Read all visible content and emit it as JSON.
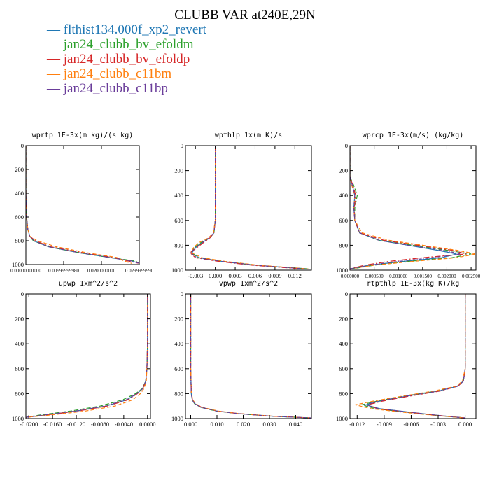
{
  "figure": {
    "title": "CLUBB VAR at240E,29N"
  },
  "legend": [
    {
      "name": "flthist134.000f_xp2_revert",
      "color": "#1f77b4"
    },
    {
      "name": "jan24_clubb_bv_efoldm",
      "color": "#2ca02c"
    },
    {
      "name": "jan24_clubb_bv_efoldp",
      "color": "#d62728"
    },
    {
      "name": "jan24_clubb_c11bm",
      "color": "#ff7f0e"
    },
    {
      "name": "jan24_clubb_c11bp",
      "color": "#6a3d9a"
    }
  ],
  "chart_data": [
    {
      "type": "line",
      "title": "wprtp  1E-3x(m kg)/(s kg)",
      "xlim": [
        0,
        0.03
      ],
      "ylim": [
        1000,
        0
      ],
      "xticks": [
        0,
        0.01,
        0.02,
        0.03
      ],
      "xtick_labels": [
        "0.00000000000",
        "0.00999999980",
        "0.0200000000",
        "0.0299999990"
      ],
      "yticks": [
        0,
        200,
        400,
        600,
        800,
        1000
      ],
      "y": [
        0,
        200,
        400,
        600,
        700,
        760,
        800,
        850,
        900,
        940,
        970,
        990
      ],
      "series": [
        {
          "values": [
            0,
            0,
            0,
            0.0002,
            0.0005,
            0.001,
            0.002,
            0.006,
            0.014,
            0.022,
            0.028,
            0.03
          ]
        },
        {
          "values": [
            0,
            0,
            0,
            0.0002,
            0.0005,
            0.001,
            0.002,
            0.006,
            0.014,
            0.022,
            0.029,
            0.03
          ]
        },
        {
          "values": [
            0,
            0,
            0,
            0.0002,
            0.0005,
            0.001,
            0.0025,
            0.0065,
            0.015,
            0.023,
            0.027,
            0.03
          ]
        },
        {
          "values": [
            0,
            0,
            0,
            0.0002,
            0.0005,
            0.001,
            0.003,
            0.008,
            0.016,
            0.024,
            0.026,
            0.028
          ]
        },
        {
          "values": [
            0,
            0,
            0,
            0.0002,
            0.0005,
            0.001,
            0.0022,
            0.006,
            0.014,
            0.022,
            0.028,
            0.03
          ]
        }
      ]
    },
    {
      "type": "line",
      "title": "wpthlp  1x(m K)/s",
      "xlim": [
        -0.0045,
        0.0145
      ],
      "ylim": [
        1000,
        0
      ],
      "xticks": [
        -0.003,
        0,
        0.003,
        0.006,
        0.009,
        0.012
      ],
      "xtick_labels": [
        "-0.003",
        "0.000",
        "0.003",
        "0.006",
        "0.009",
        "0.012"
      ],
      "yticks": [
        0,
        200,
        400,
        600,
        800,
        1000
      ],
      "y": [
        0,
        200,
        400,
        600,
        700,
        740,
        780,
        820,
        860,
        900,
        930,
        960,
        990
      ],
      "series": [
        {
          "values": [
            0,
            0,
            0,
            0,
            -0.0002,
            -0.0008,
            -0.002,
            -0.003,
            -0.0035,
            -0.0025,
            0.001,
            0.006,
            0.014
          ]
        },
        {
          "values": [
            0,
            0,
            0,
            0,
            -0.0002,
            -0.0008,
            -0.0022,
            -0.0032,
            -0.0036,
            -0.0025,
            0.001,
            0.006,
            0.014
          ]
        },
        {
          "values": [
            0,
            0,
            0,
            0,
            -0.0002,
            -0.0008,
            -0.0018,
            -0.0028,
            -0.0038,
            -0.003,
            0.0005,
            0.0055,
            0.013
          ]
        },
        {
          "values": [
            0,
            0,
            0,
            0,
            -0.0003,
            -0.001,
            -0.0025,
            -0.0033,
            -0.0036,
            -0.002,
            0.0015,
            0.0065,
            0.014
          ]
        },
        {
          "values": [
            0,
            0,
            0,
            0,
            -0.0002,
            -0.0009,
            -0.002,
            -0.003,
            -0.0037,
            -0.0028,
            0.001,
            0.006,
            0.0135
          ]
        }
      ]
    },
    {
      "type": "line",
      "title": "wprcp  1E-3x(m/s) (kg/kg)",
      "xlim": [
        0,
        0.0026
      ],
      "ylim": [
        1000,
        0
      ],
      "xticks": [
        0,
        0.0005,
        0.001,
        0.0015,
        0.002,
        0.0025
      ],
      "xtick_labels": [
        "0.000000",
        "0.000500",
        "0.001000",
        "0.001500",
        "0.002000",
        "0.002500"
      ],
      "yticks": [
        0,
        200,
        400,
        600,
        800,
        1000
      ],
      "y": [
        0,
        250,
        320,
        400,
        500,
        600,
        700,
        760,
        800,
        840,
        870,
        900,
        930,
        960,
        990
      ],
      "series": [
        {
          "values": [
            0,
            0,
            5e-05,
            0.0001,
            8e-05,
            0.0001,
            0.0002,
            0.0006,
            0.0012,
            0.0018,
            0.0022,
            0.0019,
            0.0011,
            0.0004,
            0
          ]
        },
        {
          "values": [
            0,
            0,
            8e-05,
            0.00015,
            0.0001,
            0.0001,
            0.0002,
            0.0006,
            0.0013,
            0.002,
            0.0025,
            0.0021,
            0.0012,
            0.0005,
            5e-05
          ]
        },
        {
          "values": [
            0,
            0,
            6e-05,
            0.00012,
            9e-05,
            0.0001,
            0.0002,
            0.0007,
            0.0014,
            0.0021,
            0.0024,
            0.0015,
            0.0008,
            0.0003,
            0
          ]
        },
        {
          "values": [
            0,
            0,
            4e-05,
            0.0001,
            8e-05,
            0.0001,
            0.00025,
            0.0008,
            0.0015,
            0.0022,
            0.0026,
            0.0022,
            0.0013,
            0.0005,
            0
          ]
        },
        {
          "values": [
            0,
            0,
            5e-05,
            0.0001,
            8e-05,
            0.0001,
            0.0002,
            0.0006,
            0.0012,
            0.0019,
            0.0023,
            0.0017,
            0.001,
            0.0004,
            0
          ]
        }
      ]
    },
    {
      "type": "line",
      "title": "upwp  1xm^2/s^2",
      "xlim": [
        -0.0205,
        0.0005
      ],
      "ylim": [
        1000,
        0
      ],
      "xticks": [
        -0.02,
        -0.016,
        -0.012,
        -0.008,
        -0.004,
        0
      ],
      "xtick_labels": [
        "-0.0200",
        "-0.0160",
        "-0.0120",
        "-0.0080",
        "-0.0040",
        "0.0000"
      ],
      "yticks": [
        0,
        200,
        400,
        600,
        800,
        1000
      ],
      "y": [
        0,
        200,
        400,
        600,
        700,
        760,
        800,
        850,
        900,
        940,
        970,
        990
      ],
      "series": [
        {
          "values": [
            0,
            0,
            0,
            -0.0001,
            -0.0003,
            -0.0008,
            -0.0018,
            -0.0035,
            -0.007,
            -0.012,
            -0.017,
            -0.0205
          ]
        },
        {
          "values": [
            0,
            0,
            0,
            -0.0001,
            -0.0003,
            -0.0009,
            -0.002,
            -0.0042,
            -0.008,
            -0.013,
            -0.018,
            -0.0205
          ]
        },
        {
          "values": [
            0,
            0,
            0,
            -0.0001,
            -0.0003,
            -0.0008,
            -0.0017,
            -0.0033,
            -0.0068,
            -0.0118,
            -0.0168,
            -0.0205
          ]
        },
        {
          "values": [
            0,
            0,
            0,
            -0.0001,
            -0.0002,
            -0.0006,
            -0.0012,
            -0.0025,
            -0.0055,
            -0.0105,
            -0.016,
            -0.0205
          ]
        },
        {
          "values": [
            0,
            0,
            0,
            -0.0001,
            -0.0003,
            -0.0008,
            -0.0018,
            -0.0036,
            -0.0072,
            -0.0122,
            -0.0172,
            -0.0205
          ]
        }
      ]
    },
    {
      "type": "line",
      "title": "vpwp  1xm^2/s^2",
      "xlim": [
        -0.002,
        0.046
      ],
      "ylim": [
        1000,
        0
      ],
      "xticks": [
        0,
        0.01,
        0.02,
        0.03,
        0.04
      ],
      "xtick_labels": [
        "0.000",
        "0.010",
        "0.020",
        "0.030",
        "0.040"
      ],
      "yticks": [
        0,
        200,
        400,
        600,
        800,
        1000
      ],
      "y": [
        0,
        200,
        400,
        600,
        800,
        850,
        880,
        910,
        940,
        960,
        980,
        995
      ],
      "series": [
        {
          "values": [
            0,
            0,
            0,
            0,
            0.0002,
            0.0006,
            0.0015,
            0.004,
            0.01,
            0.018,
            0.03,
            0.046
          ]
        },
        {
          "values": [
            0,
            0,
            0,
            0,
            0.0002,
            0.0006,
            0.0014,
            0.0038,
            0.0098,
            0.0178,
            0.0298,
            0.046
          ]
        },
        {
          "values": [
            0,
            0,
            0,
            0,
            0.0002,
            0.0007,
            0.0016,
            0.0042,
            0.0102,
            0.0182,
            0.0302,
            0.046
          ]
        },
        {
          "values": [
            0,
            0,
            0,
            0,
            0.0003,
            0.0008,
            0.0018,
            0.0045,
            0.0105,
            0.0185,
            0.0305,
            0.046
          ]
        },
        {
          "values": [
            0,
            0,
            0,
            0,
            0.0002,
            0.0006,
            0.0015,
            0.004,
            0.01,
            0.018,
            0.03,
            0.046
          ]
        }
      ]
    },
    {
      "type": "line",
      "title": "rtpthlp  1E-3x(kg K)/kg",
      "xlim": [
        -0.0128,
        0.0012
      ],
      "ylim": [
        1000,
        0
      ],
      "xticks": [
        -0.012,
        -0.009,
        -0.006,
        -0.003,
        0
      ],
      "xtick_labels": [
        "-0.012",
        "-0.009",
        "-0.006",
        "-0.003",
        "0.000"
      ],
      "yticks": [
        0,
        200,
        400,
        600,
        800,
        1000
      ],
      "y": [
        0,
        200,
        400,
        600,
        700,
        740,
        780,
        820,
        860,
        890,
        920,
        950,
        975,
        995
      ],
      "series": [
        {
          "values": [
            0,
            0,
            0,
            0,
            -0.0002,
            -0.0008,
            -0.003,
            -0.0065,
            -0.0095,
            -0.011,
            -0.0095,
            -0.006,
            -0.003,
            0
          ]
        },
        {
          "values": [
            0,
            0,
            0,
            0,
            -0.0002,
            -0.0009,
            -0.0032,
            -0.0068,
            -0.0098,
            -0.0115,
            -0.01,
            -0.0065,
            -0.0032,
            0
          ]
        },
        {
          "values": [
            0,
            0,
            0,
            0,
            -0.0002,
            -0.0008,
            -0.0028,
            -0.0062,
            -0.0092,
            -0.0108,
            -0.0098,
            -0.0062,
            -0.003,
            0
          ]
        },
        {
          "values": [
            0,
            0,
            0,
            0,
            -0.0003,
            -0.001,
            -0.0035,
            -0.007,
            -0.0102,
            -0.0122,
            -0.0105,
            -0.0068,
            -0.0034,
            0
          ]
        },
        {
          "values": [
            0,
            0,
            0,
            0,
            -0.0002,
            -0.0008,
            -0.003,
            -0.0066,
            -0.0096,
            -0.0112,
            -0.0096,
            -0.0061,
            -0.003,
            0
          ]
        }
      ]
    }
  ]
}
